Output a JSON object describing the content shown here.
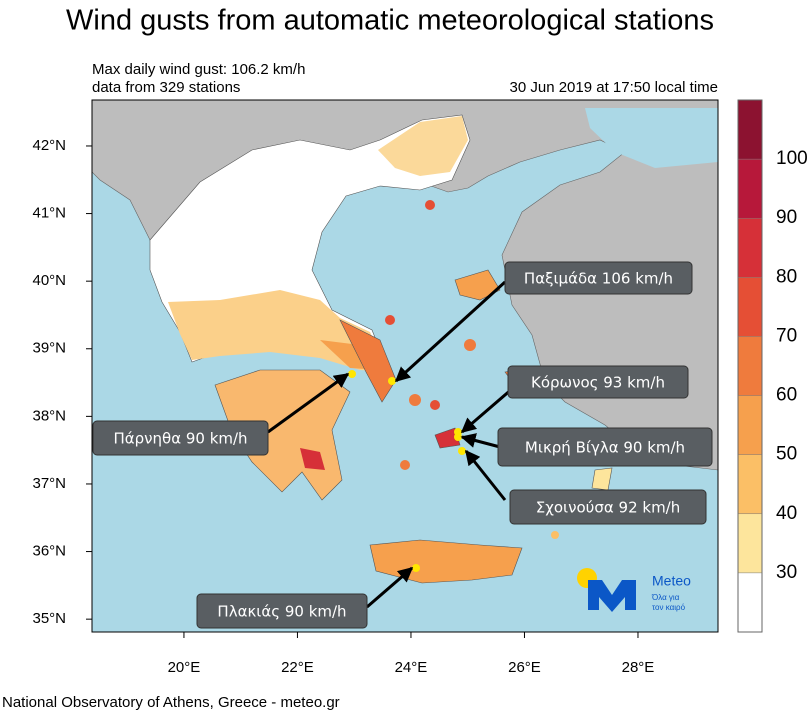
{
  "header": {
    "title": "Wind gusts from automatic meteorological stations",
    "subtitle_lines": [
      "Max daily wind gust: 106.2 km/h",
      "data from 329 stations"
    ],
    "timestamp": "30 Jun 2019 at 17:50 local time"
  },
  "map": {
    "xlim": [
      18.38,
      29.41
    ],
    "ylim": [
      34.81,
      42.68
    ],
    "lon_ticks": [
      {
        "value": 20,
        "label": "20°E"
      },
      {
        "value": 22,
        "label": "22°E"
      },
      {
        "value": 24,
        "label": "24°E"
      },
      {
        "value": 26,
        "label": "26°E"
      },
      {
        "value": 28,
        "label": "28°E"
      }
    ],
    "lat_ticks": [
      {
        "value": 35,
        "label": "35°N"
      },
      {
        "value": 36,
        "label": "36°N"
      },
      {
        "value": 37,
        "label": "37°N"
      },
      {
        "value": 38,
        "label": "38°N"
      },
      {
        "value": 39,
        "label": "39°N"
      },
      {
        "value": 40,
        "label": "40°N"
      },
      {
        "value": 41,
        "label": "41°N"
      },
      {
        "value": 42,
        "label": "42°N"
      }
    ]
  },
  "colorbar": {
    "lim": [
      20,
      110
    ],
    "ticks": [
      30,
      40,
      50,
      60,
      70,
      80,
      90,
      100
    ],
    "colors": [
      "#ffffff",
      "#fde59c",
      "#fbbf66",
      "#f6a04d",
      "#ef7b3d",
      "#e54f35",
      "#d63038",
      "#b7183a",
      "#8c1230"
    ]
  },
  "annotations": [
    "Παξιμάδα 106 km/h",
    "Κόρωνος 93 km/h",
    "Μικρή Βίγλα 90 km/h",
    "Σχοινούσα 92 km/h",
    "Πάρνηθα 90 km/h",
    "Πλακιάς 90 km/h"
  ],
  "logo": {
    "name": "Meteo",
    "slogan_lines": [
      "Όλα για",
      "τον καιρό"
    ]
  },
  "footer": "National Observatory of Athens, Greece - meteo.gr"
}
